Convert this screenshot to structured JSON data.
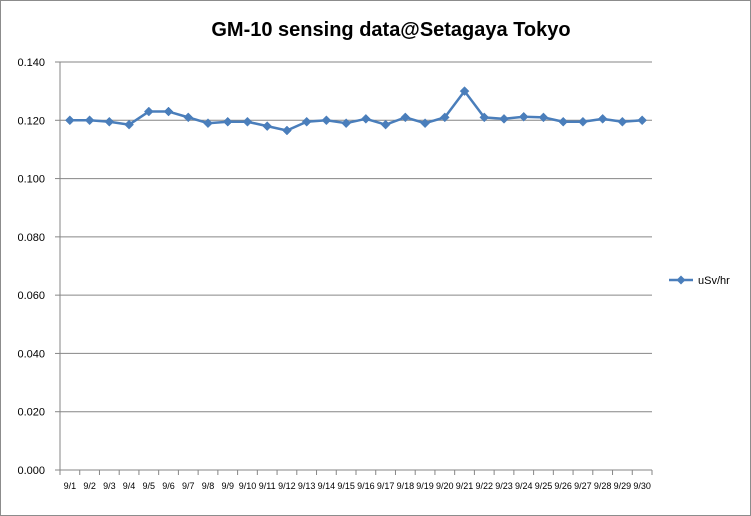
{
  "chart_data": {
    "type": "line",
    "title": "GM-10 sensing data@Setagaya Tokyo",
    "xlabel": "",
    "ylabel": "",
    "categories": [
      "9/1",
      "9/2",
      "9/3",
      "9/4",
      "9/5",
      "9/6",
      "9/7",
      "9/8",
      "9/9",
      "9/10",
      "9/11",
      "9/12",
      "9/13",
      "9/14",
      "9/15",
      "9/16",
      "9/17",
      "9/18",
      "9/19",
      "9/20",
      "9/21",
      "9/22",
      "9/23",
      "9/24",
      "9/25",
      "9/26",
      "9/27",
      "9/28",
      "9/29",
      "9/30"
    ],
    "series": [
      {
        "name": "uSv/hr",
        "color": "#4a7ebb",
        "values": [
          0.12,
          0.12,
          0.1195,
          0.1185,
          0.123,
          0.123,
          0.121,
          0.119,
          0.1195,
          0.1195,
          0.118,
          0.1165,
          0.1195,
          0.12,
          0.119,
          0.1205,
          0.1185,
          0.121,
          0.119,
          0.121,
          0.13,
          0.121,
          0.1205,
          0.1212,
          0.121,
          0.1195,
          0.1195,
          0.1205,
          0.1195,
          0.12
        ]
      }
    ],
    "ylim": [
      0,
      0.14
    ],
    "yticks": [
      "0.000",
      "0.020",
      "0.040",
      "0.060",
      "0.080",
      "0.100",
      "0.120",
      "0.140"
    ],
    "grid": true,
    "legend_position": "right"
  }
}
